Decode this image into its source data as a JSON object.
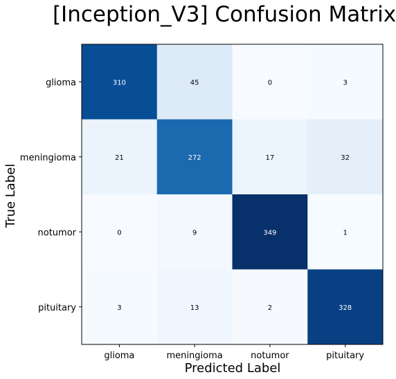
{
  "chart_data": {
    "type": "heatmap",
    "title": "[Inception_V3] Confusion Matrix",
    "xlabel": "Predicted Label",
    "ylabel": "True Label",
    "x_categories": [
      "glioma",
      "meningioma",
      "notumor",
      "pituitary"
    ],
    "y_categories": [
      "glioma",
      "meningioma",
      "notumor",
      "pituitary"
    ],
    "values": [
      [
        310,
        45,
        0,
        3
      ],
      [
        21,
        272,
        17,
        32
      ],
      [
        0,
        9,
        349,
        1
      ],
      [
        3,
        13,
        2,
        328
      ]
    ],
    "colormap": "Blues",
    "vmin": 0,
    "vmax": 349,
    "cell_text_colors": {
      "dark_background": "#ffffff",
      "light_background": "#000000"
    }
  }
}
